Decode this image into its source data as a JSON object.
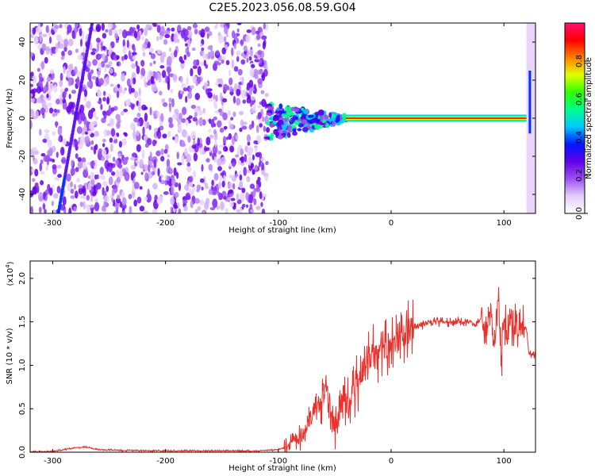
{
  "chart_data": [
    {
      "type": "heatmap",
      "title": "C2E5.2023.056.08.59.G04",
      "xlabel": "Height of straight line (km)",
      "ylabel": "Frequency (Hz)",
      "xlim": [
        -320,
        128
      ],
      "ylim": [
        -50,
        50
      ],
      "x_ticks": [
        -300,
        -200,
        -100,
        0,
        100
      ],
      "y_ticks": [
        -40,
        -20,
        0,
        20,
        40
      ],
      "colorbar": {
        "label": "Normalized spectral amplitude",
        "range": [
          0,
          1
        ],
        "ticks": [
          "0.0",
          "0.2",
          "0.4",
          "0.6",
          "0.8"
        ],
        "colors": [
          "#ffffff",
          "#e4cdfc",
          "#9c50ef",
          "#6200ea",
          "#0018ff",
          "#00c8ff",
          "#00ff90",
          "#30ff00",
          "#e0ff00",
          "#ff8000",
          "#ff0000",
          "#ff1070"
        ]
      },
      "regions": {
        "noise_band_km": [
          -320,
          -110
        ],
        "transition_band_km": [
          -110,
          -40
        ],
        "carrier_line_km": [
          -40,
          120
        ],
        "carrier_frequency_hz": 0,
        "edge_signal_km": [
          120,
          128
        ]
      },
      "grid": false
    },
    {
      "type": "line",
      "title": "",
      "xlabel": "Height of straight line (km)",
      "ylabel": "SNR (10 * v/v)",
      "y_multiplier": "(x10",
      "y_multiplier_exp": "4",
      "y_multiplier_close": ")",
      "xlim": [
        -320,
        128
      ],
      "ylim": [
        0,
        2.2
      ],
      "x_ticks": [
        -300,
        -200,
        -100,
        0,
        100
      ],
      "y_ticks": [
        "0.0",
        "0.5",
        "1.0",
        "1.5",
        "2.0"
      ],
      "line_color": "#e8312c",
      "series": [
        {
          "x": [
            -320,
            -300,
            -290,
            -280,
            -270,
            -260,
            -240,
            -220,
            -200,
            -180,
            -160,
            -140,
            -120,
            -110,
            -100,
            -92,
            -85,
            -80,
            -75,
            -70,
            -65,
            -60,
            -57,
            -55,
            -52,
            -50,
            -47,
            -45,
            -40,
            -35,
            -30,
            -25,
            -20,
            -15,
            -10,
            -5,
            0,
            5,
            10,
            15,
            20,
            25,
            30,
            40,
            50,
            60,
            70,
            75,
            80,
            85,
            88,
            92,
            95,
            98,
            100,
            103,
            106,
            110,
            115,
            120,
            122,
            124,
            128
          ],
          "y": [
            0.005,
            0.01,
            0.03,
            0.05,
            0.06,
            0.03,
            0.02,
            0.02,
            0.015,
            0.015,
            0.015,
            0.015,
            0.015,
            0.02,
            0.03,
            0.06,
            0.12,
            0.2,
            0.28,
            0.36,
            0.48,
            0.62,
            0.85,
            0.55,
            0.4,
            0.3,
            0.35,
            0.5,
            0.55,
            0.6,
            0.8,
            0.95,
            1.05,
            1.12,
            1.15,
            1.2,
            1.2,
            1.25,
            1.32,
            1.38,
            1.42,
            1.45,
            1.48,
            1.5,
            1.5,
            1.5,
            1.5,
            1.45,
            1.55,
            1.3,
            1.6,
            1.25,
            1.85,
            1.1,
            1.5,
            1.35,
            1.45,
            1.45,
            1.45,
            1.42,
            1.15,
            1.12,
            1.12
          ]
        }
      ],
      "grid": false
    }
  ]
}
